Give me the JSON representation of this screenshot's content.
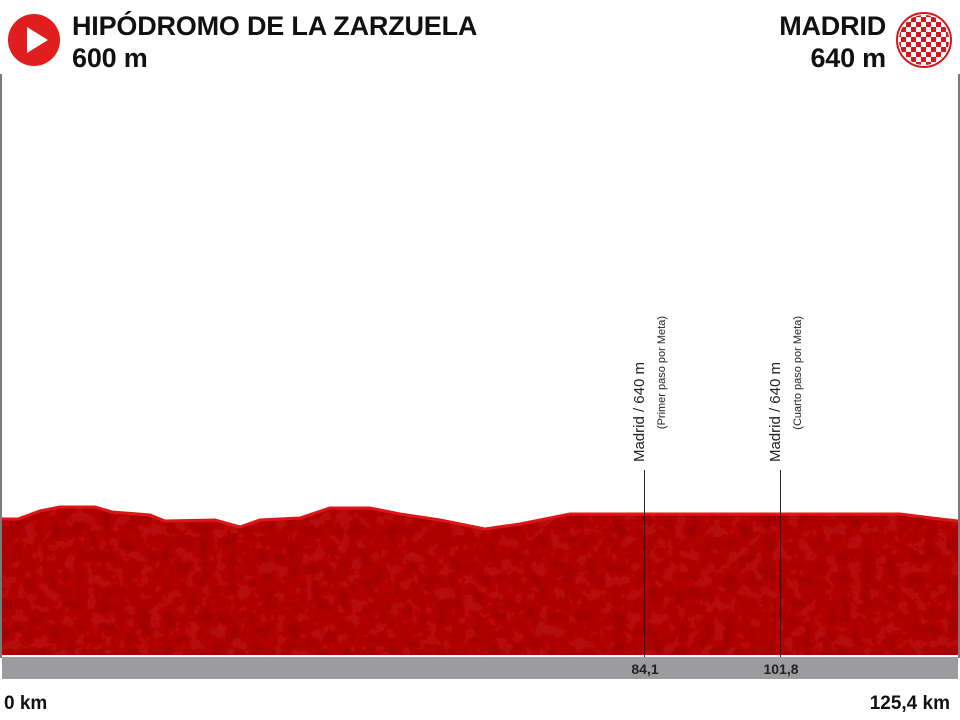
{
  "start": {
    "name": "HIPÓDROMO DE LA ZARZUELA",
    "altitude": "600 m",
    "icon": "play-icon"
  },
  "finish": {
    "name": "MADRID",
    "altitude": "640 m",
    "icon": "checkered-flag-icon"
  },
  "distance": {
    "start_label": "0 km",
    "end_label": "125,4 km"
  },
  "markers": [
    {
      "km_label": "84,1",
      "title": "Madrid / 640 m",
      "note": "(Primer paso por Meta)"
    },
    {
      "km_label": "101,8",
      "title": "Madrid / 640 m",
      "note": "(Cuarto paso por Meta)"
    }
  ],
  "colors": {
    "profile_fill": "#b50d0d",
    "profile_top": "#e01616",
    "axis_bar": "#9c9c9e",
    "start_icon": "#e01e1e"
  }
}
